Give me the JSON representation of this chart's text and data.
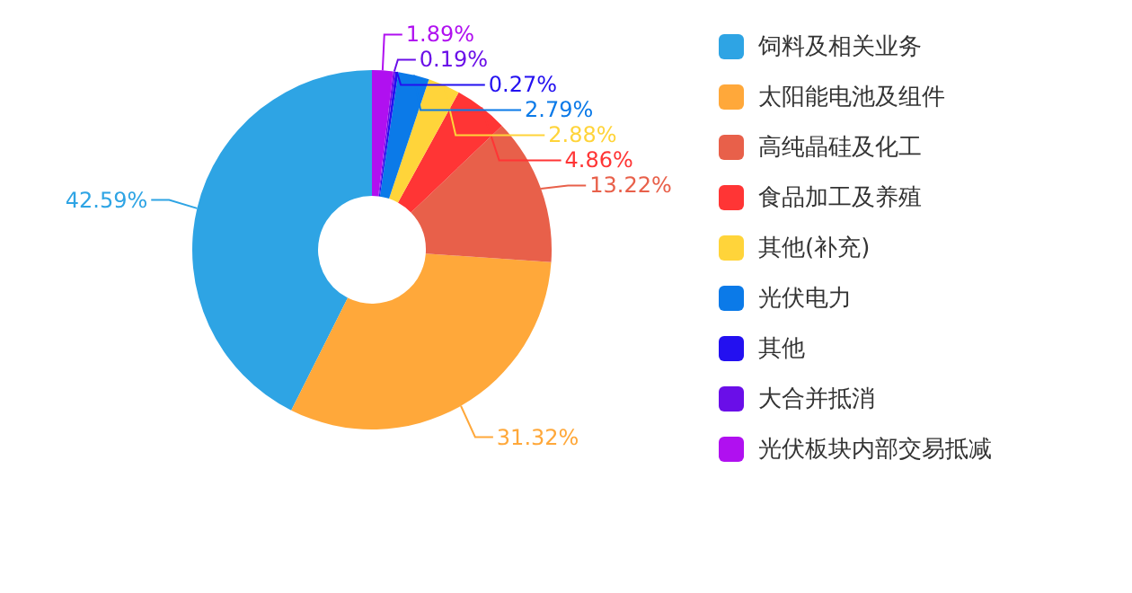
{
  "chart_data": {
    "type": "donut",
    "categories": [
      "饲料及相关业务",
      "太阳能电池及组件",
      "高纯晶硅及化工",
      "食品加工及养殖",
      "其他(补充)",
      "光伏电力",
      "其他",
      "大合并抵消",
      "光伏板块内部交易抵减"
    ],
    "values": [
      42.59,
      31.32,
      13.22,
      4.86,
      2.88,
      2.79,
      0.27,
      0.19,
      1.89
    ],
    "colors": [
      "#2ea4e4",
      "#ffa83a",
      "#e8604a",
      "#ff3535",
      "#ffd43a",
      "#0b7ae8",
      "#2310f0",
      "#6a0ee8",
      "#b010f0"
    ],
    "value_labels": [
      "42.59%",
      "31.32%",
      "13.22%",
      "4.86%",
      "2.88%",
      "2.79%",
      "0.27%",
      "0.19%",
      "1.89%"
    ],
    "legend": "right"
  }
}
